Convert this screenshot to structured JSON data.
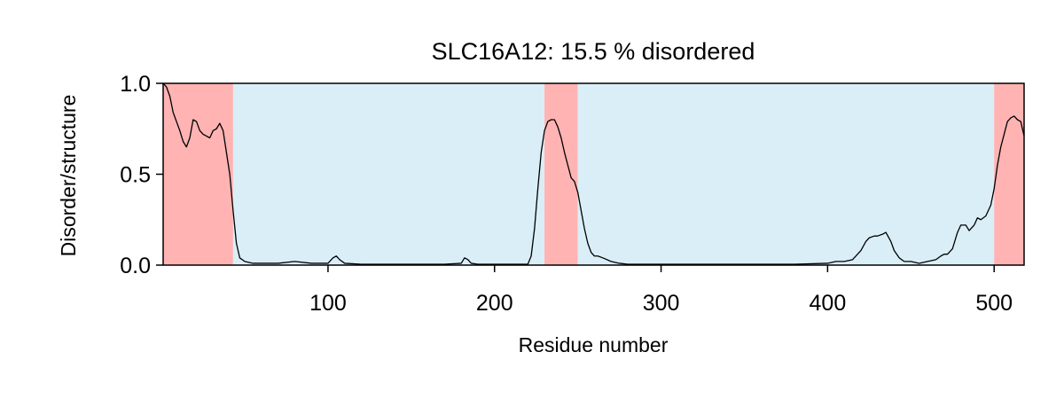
{
  "chart_data": {
    "type": "line",
    "title": "SLC16A12: 15.5 % disordered",
    "xlabel": "Residue number",
    "ylabel": "Disorder/structure",
    "xlim": [
      1,
      518
    ],
    "ylim": [
      0,
      1.0
    ],
    "xticks": [
      100,
      200,
      300,
      400,
      500
    ],
    "xtick_labels": [
      "100",
      "200",
      "300",
      "400",
      "500"
    ],
    "yticks": [
      0,
      0.5,
      1.0
    ],
    "ytick_labels": [
      "0.0",
      "0.5",
      "1.0"
    ],
    "grid": false,
    "regions": [
      {
        "type": "disordered",
        "start": 1,
        "end": 43,
        "color": "#ffb3b3"
      },
      {
        "type": "structured",
        "start": 43,
        "end": 230,
        "color": "#daeef7"
      },
      {
        "type": "disordered",
        "start": 230,
        "end": 250,
        "color": "#ffb3b3"
      },
      {
        "type": "structured",
        "start": 250,
        "end": 500,
        "color": "#daeef7"
      },
      {
        "type": "disordered",
        "start": 500,
        "end": 518,
        "color": "#ffb3b3"
      }
    ],
    "series": [
      {
        "color": "#000000",
        "x": [
          1,
          3,
          5,
          7,
          9,
          11,
          13,
          15,
          17,
          19,
          21,
          23,
          25,
          27,
          29,
          31,
          33,
          35,
          37,
          39,
          41,
          43,
          45,
          47,
          50,
          55,
          60,
          70,
          80,
          90,
          100,
          103,
          105,
          107,
          110,
          120,
          130,
          140,
          150,
          160,
          170,
          180,
          182,
          184,
          186,
          190,
          200,
          210,
          220,
          222,
          224,
          226,
          228,
          230,
          232,
          234,
          236,
          238,
          240,
          242,
          244,
          246,
          248,
          250,
          252,
          254,
          256,
          258,
          260,
          262,
          265,
          270,
          275,
          280,
          290,
          300,
          320,
          340,
          360,
          380,
          400,
          405,
          410,
          415,
          420,
          423,
          425,
          428,
          430,
          433,
          435,
          438,
          440,
          443,
          446,
          450,
          455,
          460,
          465,
          468,
          470,
          472,
          475,
          478,
          480,
          483,
          485,
          488,
          490,
          492,
          495,
          498,
          500,
          502,
          504,
          506,
          508,
          510,
          512,
          514,
          516,
          518
        ],
        "y": [
          1.0,
          0.98,
          0.93,
          0.84,
          0.79,
          0.74,
          0.68,
          0.65,
          0.7,
          0.8,
          0.79,
          0.74,
          0.72,
          0.71,
          0.7,
          0.74,
          0.75,
          0.78,
          0.74,
          0.62,
          0.5,
          0.3,
          0.12,
          0.04,
          0.02,
          0.01,
          0.01,
          0.01,
          0.02,
          0.01,
          0.01,
          0.04,
          0.05,
          0.03,
          0.01,
          0.005,
          0.005,
          0.005,
          0.005,
          0.005,
          0.005,
          0.01,
          0.04,
          0.03,
          0.01,
          0.005,
          0.005,
          0.005,
          0.005,
          0.05,
          0.2,
          0.42,
          0.62,
          0.74,
          0.79,
          0.8,
          0.8,
          0.76,
          0.7,
          0.62,
          0.55,
          0.48,
          0.46,
          0.4,
          0.3,
          0.2,
          0.12,
          0.07,
          0.05,
          0.05,
          0.04,
          0.02,
          0.01,
          0.005,
          0.005,
          0.005,
          0.005,
          0.005,
          0.005,
          0.005,
          0.01,
          0.02,
          0.02,
          0.03,
          0.08,
          0.13,
          0.15,
          0.16,
          0.16,
          0.17,
          0.18,
          0.13,
          0.08,
          0.04,
          0.02,
          0.02,
          0.01,
          0.02,
          0.03,
          0.05,
          0.06,
          0.06,
          0.09,
          0.18,
          0.22,
          0.22,
          0.19,
          0.22,
          0.26,
          0.25,
          0.27,
          0.33,
          0.42,
          0.55,
          0.65,
          0.72,
          0.79,
          0.81,
          0.82,
          0.8,
          0.79,
          0.71
        ]
      }
    ]
  }
}
